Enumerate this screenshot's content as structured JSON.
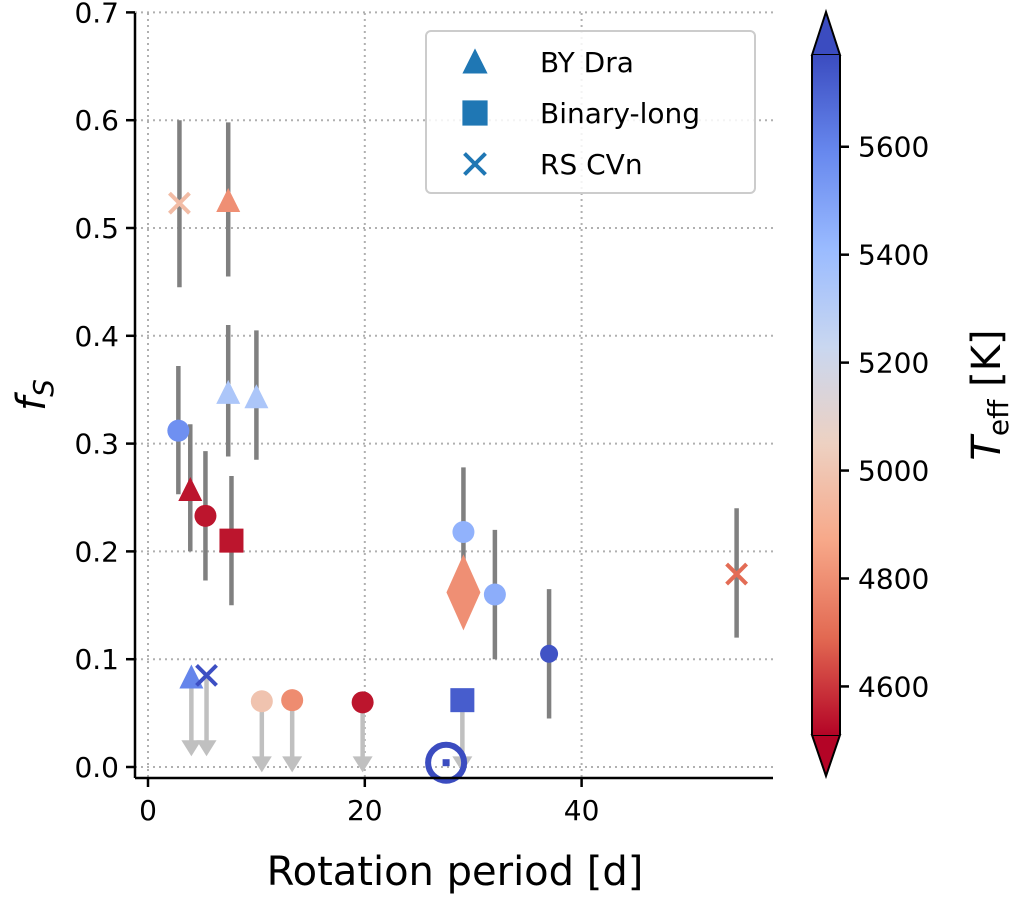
{
  "chart_data": {
    "type": "scatter",
    "xlabel": "Rotation period [d]",
    "ylabel": "f_S",
    "xlim": [
      -1.2,
      57.5
    ],
    "ylim": [
      -0.01,
      0.7
    ],
    "xticks": [
      "0",
      "20",
      "40"
    ],
    "xtick_values": [
      0,
      20,
      40
    ],
    "yticks": [
      "0.0",
      "0.1",
      "0.2",
      "0.3",
      "0.4",
      "0.5",
      "0.6",
      "0.7"
    ],
    "ytick_values": [
      0,
      0.1,
      0.2,
      0.3,
      0.4,
      0.5,
      0.6,
      0.7
    ],
    "grid": true,
    "legend": {
      "placement": "top-right",
      "entries": [
        {
          "label": "BY Dra",
          "marker": "triangle"
        },
        {
          "label": "Binary-long",
          "marker": "square"
        },
        {
          "label": "RS CVn",
          "marker": "x"
        }
      ],
      "color": "#1f77b4"
    },
    "colorbar": {
      "label": "T_eff [K]",
      "colormap": "coolwarm_r",
      "range": [
        4510,
        5770
      ],
      "ticks": [
        "4600",
        "4800",
        "5000",
        "5200",
        "5400",
        "5600"
      ],
      "tick_values": [
        4600,
        4800,
        5000,
        5200,
        5400,
        5600
      ],
      "extend": "both"
    },
    "error_color": "#808080",
    "limit_color": "#c0c0c0",
    "points": [
      {
        "x": 2.9,
        "y": 0.523,
        "err": [
          0.445,
          0.6
        ],
        "marker": "x",
        "teff": 4960
      },
      {
        "x": 7.4,
        "y": 0.525,
        "err": [
          0.455,
          0.598
        ],
        "marker": "triangle",
        "teff": 4800
      },
      {
        "x": 2.8,
        "y": 0.312,
        "err": [
          0.253,
          0.372
        ],
        "marker": "circle",
        "teff": 5560
      },
      {
        "x": 3.9,
        "y": 0.257,
        "err": [
          0.2,
          0.318
        ],
        "marker": "triangle",
        "teff": 4540
      },
      {
        "x": 5.3,
        "y": 0.233,
        "err": [
          0.173,
          0.293
        ],
        "marker": "circle",
        "teff": 4540
      },
      {
        "x": 7.7,
        "y": 0.21,
        "err": [
          0.15,
          0.27
        ],
        "marker": "square",
        "teff": 4540
      },
      {
        "x": 7.4,
        "y": 0.347,
        "err": [
          0.288,
          0.41
        ],
        "marker": "triangle",
        "teff": 5340
      },
      {
        "x": 10.0,
        "y": 0.343,
        "err": [
          0.285,
          0.405
        ],
        "marker": "triangle",
        "teff": 5340
      },
      {
        "x": 29.1,
        "y": 0.218,
        "err": [
          0.158,
          0.278
        ],
        "marker": "circle",
        "teff": 5440
      },
      {
        "x": 29.1,
        "y": 0.162,
        "err": null,
        "marker": "diamond",
        "teff": 4800
      },
      {
        "x": 32.0,
        "y": 0.16,
        "err": [
          0.1,
          0.22
        ],
        "marker": "circle",
        "teff": 5460
      },
      {
        "x": 37.0,
        "y": 0.105,
        "err": [
          0.045,
          0.165
        ],
        "marker": "circle-small",
        "teff": 5750
      },
      {
        "x": 54.3,
        "y": 0.179,
        "err": [
          0.12,
          0.24
        ],
        "marker": "x",
        "teff": 4700
      },
      {
        "x": 4.0,
        "y": 0.083,
        "upper_limit": true,
        "marker": "triangle",
        "teff": 5600
      },
      {
        "x": 5.4,
        "y": 0.085,
        "upper_limit": true,
        "marker": "x",
        "teff": 5760
      },
      {
        "x": 10.5,
        "y": 0.061,
        "upper_limit": true,
        "marker": "circle",
        "teff": 4990
      },
      {
        "x": 13.3,
        "y": 0.062,
        "upper_limit": true,
        "marker": "circle",
        "teff": 4790
      },
      {
        "x": 19.8,
        "y": 0.06,
        "upper_limit": true,
        "marker": "circle",
        "teff": 4540
      },
      {
        "x": 29.0,
        "y": 0.062,
        "upper_limit": true,
        "marker": "square",
        "teff": 5720
      },
      {
        "x": 27.5,
        "y": 0.004,
        "marker": "sun",
        "teff": 5770
      }
    ]
  }
}
